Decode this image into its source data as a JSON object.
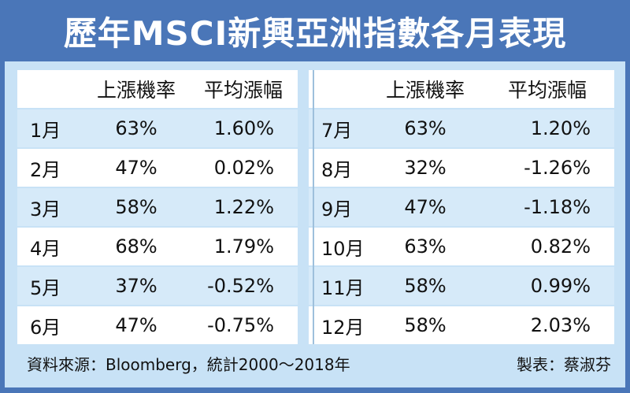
{
  "title": "歷年MSCI新興亞洲指數各月表現",
  "headers": {
    "rise_prob": "上漲機率",
    "avg_change": "平均漲幅"
  },
  "rows": [
    {
      "left": {
        "month": "1月",
        "rate": "63%",
        "avg": "1.60%"
      },
      "right": {
        "month": "7月",
        "rate": "63%",
        "avg": "1.20%"
      }
    },
    {
      "left": {
        "month": "2月",
        "rate": "47%",
        "avg": "0.02%"
      },
      "right": {
        "month": "8月",
        "rate": "32%",
        "avg": "-1.26%"
      }
    },
    {
      "left": {
        "month": "3月",
        "rate": "58%",
        "avg": "1.22%"
      },
      "right": {
        "month": "9月",
        "rate": "47%",
        "avg": "-1.18%"
      }
    },
    {
      "left": {
        "month": "4月",
        "rate": "68%",
        "avg": "1.79%"
      },
      "right": {
        "month": "10月",
        "rate": "63%",
        "avg": "0.82%"
      }
    },
    {
      "left": {
        "month": "5月",
        "rate": "37%",
        "avg": "-0.52%"
      },
      "right": {
        "month": "11月",
        "rate": "58%",
        "avg": "0.99%"
      }
    },
    {
      "left": {
        "month": "6月",
        "rate": "47%",
        "avg": "-0.75%"
      },
      "right": {
        "month": "12月",
        "rate": "58%",
        "avg": "2.03%"
      }
    }
  ],
  "footer": {
    "source": "資料來源：Bloomberg，統計2000～2018年",
    "credit": "製表：蔡淑芬"
  },
  "colors": {
    "frame": "#4a76b8",
    "panel": "#c8e2f6",
    "row_white": "#ffffff",
    "row_blue": "#d6eaf9"
  }
}
